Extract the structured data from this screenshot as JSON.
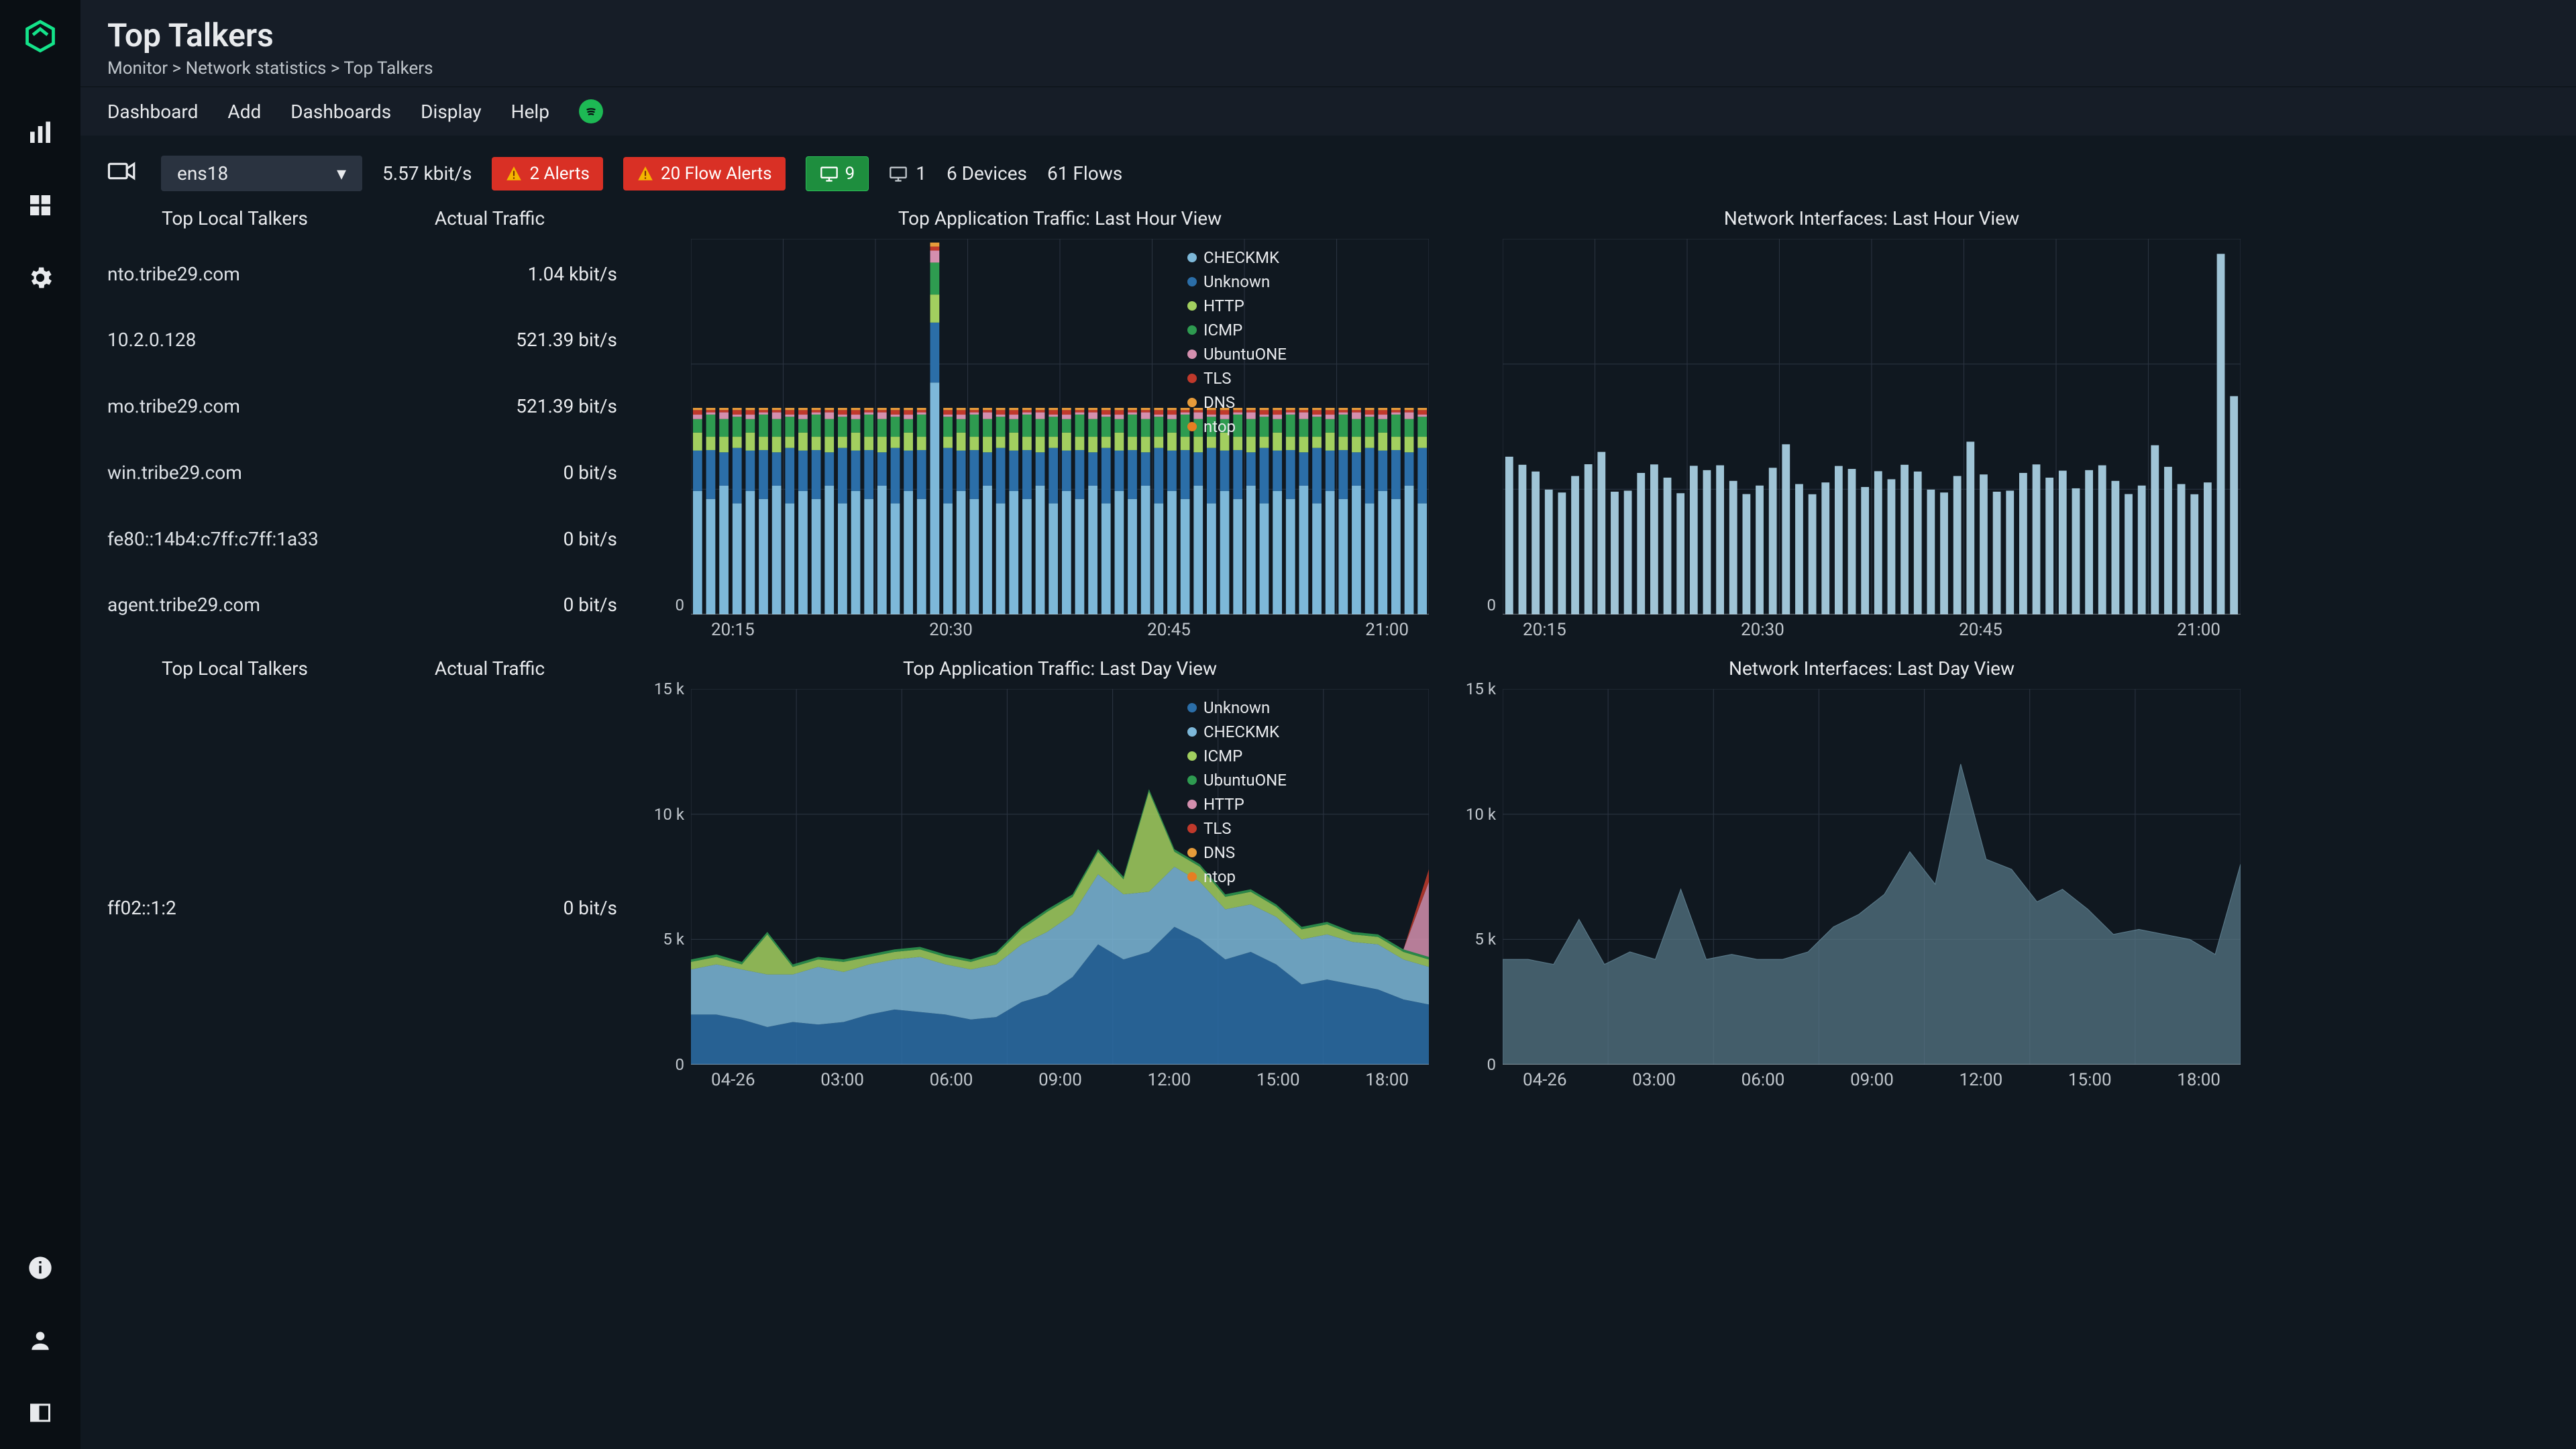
{
  "page": {
    "title": "Top Talkers",
    "breadcrumb": "Monitor > Network statistics > Top Talkers"
  },
  "menu": {
    "dashboard": "Dashboard",
    "add": "Add",
    "dashboards": "Dashboards",
    "display": "Display",
    "help": "Help"
  },
  "status": {
    "interface": "ens18",
    "throughput": "5.57 kbit/s",
    "alerts": "2 Alerts",
    "flow_alerts": "20 Flow Alerts",
    "hosts_active": "9",
    "hosts_total": "1",
    "devices": "6 Devices",
    "flows": "61 Flows"
  },
  "talkers_hour": {
    "col1": "Top Local Talkers",
    "col2": "Actual Traffic",
    "rows": [
      {
        "host": "nto.tribe29.com",
        "traffic": "1.04 kbit/s"
      },
      {
        "host": "10.2.0.128",
        "traffic": "521.39 bit/s"
      },
      {
        "host": "mo.tribe29.com",
        "traffic": "521.39 bit/s"
      },
      {
        "host": "win.tribe29.com",
        "traffic": "0 bit/s"
      },
      {
        "host": "fe80::14b4:c7ff:c7ff:1a33",
        "traffic": "0 bit/s"
      },
      {
        "host": "agent.tribe29.com",
        "traffic": "0 bit/s"
      }
    ]
  },
  "talkers_day": {
    "col1": "Top Local Talkers",
    "col2": "Actual Traffic",
    "rows": [
      {
        "host": "ff02::1:2",
        "traffic": "0 bit/s"
      }
    ]
  },
  "chart_app_hour": {
    "title": "Top Application Traffic: Last Hour View",
    "type": "stacked-bar",
    "y_axis": {
      "min": 0,
      "max_label": "0",
      "show_zero": true
    },
    "x_ticks": [
      "20:15",
      "20:30",
      "20:45",
      "21:00"
    ],
    "legend": [
      {
        "name": "CHECKMK",
        "color": "#7db8d9"
      },
      {
        "name": "Unknown",
        "color": "#2b6ea8"
      },
      {
        "name": "HTTP",
        "color": "#a2cf5f"
      },
      {
        "name": "ICMP",
        "color": "#2e9b50"
      },
      {
        "name": "UbuntuONE",
        "color": "#d48fae"
      },
      {
        "name": "TLS",
        "color": "#c0392b"
      },
      {
        "name": "DNS",
        "color": "#e69b3a"
      },
      {
        "name": "ntop",
        "color": "#e67e22"
      }
    ],
    "bar_count": 56,
    "series_pattern": [
      [
        55,
        18,
        8,
        6,
        2,
        2,
        1,
        0
      ],
      [
        52,
        22,
        6,
        10,
        1,
        1,
        1,
        0
      ],
      [
        58,
        15,
        7,
        8,
        3,
        1,
        1,
        0
      ],
      [
        50,
        25,
        5,
        9,
        1,
        2,
        1,
        0
      ]
    ],
    "spike_index": 18,
    "spike_height_factor": 1.8,
    "background": "#101820",
    "grid_color": "#2a3340"
  },
  "chart_iface_hour": {
    "title": "Network Interfaces: Last Hour View",
    "type": "bar",
    "color": "#9fc4d6",
    "y_zero": "0",
    "x_ticks": [
      "20:15",
      "20:30",
      "20:45",
      "21:00"
    ],
    "bar_count": 56,
    "base_height": 0.32,
    "jitter": 0.08,
    "end_spike_index": 54,
    "end_spike_factor": 3.0,
    "background": "#101820",
    "grid_color": "#2a3340"
  },
  "chart_app_day": {
    "title": "Top Application Traffic: Last Day View",
    "type": "stacked-area",
    "y_ticks": [
      "15 k",
      "10 k",
      "5 k",
      "0"
    ],
    "x_ticks": [
      "04-26",
      "03:00",
      "06:00",
      "09:00",
      "12:00",
      "15:00",
      "18:00"
    ],
    "legend": [
      {
        "name": "Unknown",
        "color": "#2b6ea8"
      },
      {
        "name": "CHECKMK",
        "color": "#7db8d9"
      },
      {
        "name": "ICMP",
        "color": "#a2cf5f"
      },
      {
        "name": "UbuntuONE",
        "color": "#2e9b50"
      },
      {
        "name": "HTTP",
        "color": "#d48fae"
      },
      {
        "name": "TLS",
        "color": "#c0392b"
      },
      {
        "name": "DNS",
        "color": "#e69b3a"
      },
      {
        "name": "ntop",
        "color": "#e67e22"
      }
    ],
    "points": 30,
    "series": {
      "unknown": [
        2,
        2,
        1.8,
        1.5,
        1.7,
        1.6,
        1.7,
        2,
        2.2,
        2.1,
        2,
        1.8,
        1.9,
        2.5,
        2.8,
        3.5,
        4.8,
        4.2,
        4.5,
        5.5,
        5,
        4.2,
        4.5,
        4,
        3.2,
        3.4,
        3.2,
        3,
        2.6,
        2.4
      ],
      "checkmk": [
        1.8,
        2,
        2,
        2.1,
        1.9,
        2.3,
        2,
        2,
        2,
        2.2,
        2,
        2,
        2.1,
        2.3,
        2.5,
        2.5,
        2.8,
        2.6,
        2.4,
        2.4,
        2.3,
        2,
        1.9,
        1.9,
        1.8,
        1.8,
        1.7,
        1.8,
        1.6,
        1.5
      ],
      "icmp": [
        0.3,
        0.3,
        0.2,
        1.6,
        0.3,
        0.3,
        0.4,
        0.3,
        0.3,
        0.3,
        0.3,
        0.3,
        0.4,
        0.6,
        0.8,
        0.7,
        0.9,
        0.6,
        4.0,
        0.6,
        0.6,
        0.5,
        0.5,
        0.4,
        0.4,
        0.4,
        0.3,
        0.3,
        0.3,
        0.3
      ],
      "ubuntu": [
        0.1,
        0.1,
        0.1,
        0.1,
        0.1,
        0.1,
        0.1,
        0.1,
        0.1,
        0.1,
        0.1,
        0.1,
        0.1,
        0.1,
        0.1,
        0.1,
        0.1,
        0.1,
        0.1,
        0.1,
        0.1,
        0.1,
        0.1,
        0.1,
        0.1,
        0.1,
        0.1,
        0.1,
        0.1,
        0.1
      ],
      "http": [
        0,
        0,
        0,
        0,
        0,
        0,
        0,
        0,
        0,
        0,
        0,
        0,
        0,
        0,
        0,
        0,
        0,
        0,
        0,
        0,
        0,
        0,
        0,
        0,
        0,
        0,
        0,
        0,
        0,
        3.0
      ],
      "tls": [
        0,
        0,
        0,
        0,
        0,
        0,
        0,
        0,
        0,
        0,
        0,
        0,
        0,
        0,
        0,
        0,
        0,
        0,
        0,
        0,
        0,
        0,
        0,
        0,
        0,
        0,
        0,
        0,
        0,
        0.5
      ]
    },
    "y_max": 15,
    "background": "#101820",
    "grid_color": "#2a3340"
  },
  "chart_iface_day": {
    "title": "Network Interfaces: Last Day View",
    "type": "area",
    "color": "#5a7a8a",
    "y_ticks": [
      "15 k",
      "10 k",
      "5 k",
      "0"
    ],
    "x_ticks": [
      "04-26",
      "03:00",
      "06:00",
      "09:00",
      "12:00",
      "15:00",
      "18:00"
    ],
    "points": 30,
    "values": [
      4.2,
      4.2,
      4,
      5.8,
      4,
      4.5,
      4.2,
      7,
      4.2,
      4.4,
      4.2,
      4.2,
      4.5,
      5.5,
      6,
      6.8,
      8.5,
      7.2,
      12.0,
      8.2,
      7.8,
      6.5,
      7,
      6.2,
      5.2,
      5.4,
      5.2,
      5,
      4.4,
      8.0
    ],
    "y_max": 15,
    "background": "#101820",
    "grid_color": "#2a3340"
  },
  "colors": {
    "bg": "#101820",
    "panel": "#161d27",
    "text": "#e8eaed",
    "muted": "#c0c6cc",
    "grid": "#2a3340",
    "accent_green": "#14e38a"
  }
}
